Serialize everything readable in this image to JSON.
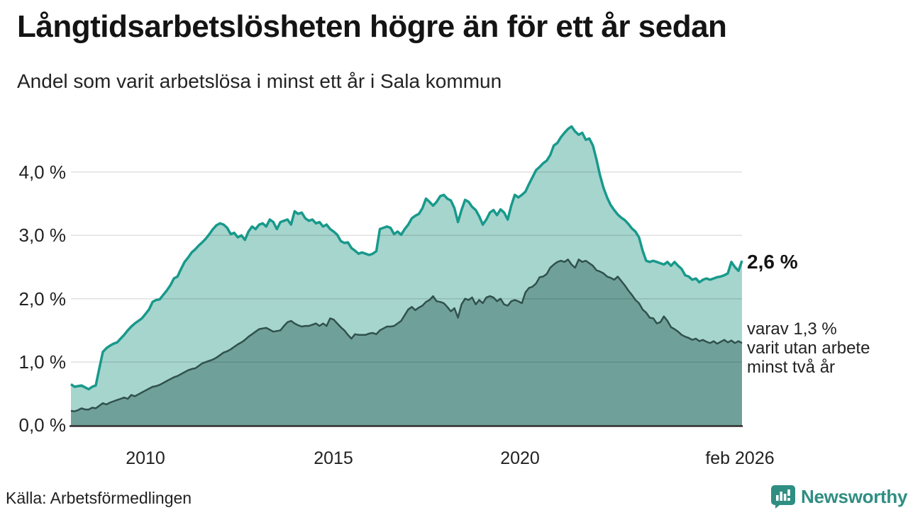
{
  "title": "Långtidsarbetslösheten högre än för ett år sedan",
  "subtitle": "Andel som varit arbetslösa i minst ett år i Sala kommun",
  "source": "Källa: Arbetsförmedlingen",
  "brand": "Newsworthy",
  "colors": {
    "series1_line": "#18998b",
    "series1_fill": "#a6d5ce",
    "series2_line": "#30514d",
    "series2_fill": "#70a09a",
    "baseline": "#2e2e2e",
    "gridline": "rgba(0,0,0,0.12)",
    "brand_teal": "#2f8e82"
  },
  "chart_data": {
    "type": "area",
    "title": "Långtidsarbetslösheten högre än för ett år sedan",
    "subtitle": "Andel som varit arbetslösa i minst ett år i Sala kommun",
    "xlabel": "",
    "ylabel": "",
    "ylim": [
      0,
      4.9
    ],
    "x_start": "jan 2008",
    "x_end": "feb 2026",
    "grid": "horizontal",
    "y_ticks": [
      {
        "label": "4,0 %",
        "value": 4.0
      },
      {
        "label": "3,0 %",
        "value": 3.0
      },
      {
        "label": "2,0 %",
        "value": 2.0
      },
      {
        "label": "1,0 %",
        "value": 1.0
      },
      {
        "label": "0,0 %",
        "value": 0.0
      }
    ],
    "x_ticks": [
      {
        "label": "2010"
      },
      {
        "label": "2015"
      },
      {
        "label": "2020"
      },
      {
        "label": "feb 2026"
      }
    ],
    "annotation": {
      "primary": "2,6 %",
      "secondary_lines": [
        "varav 1,3 %",
        "varit utan arbete",
        "minst två år"
      ]
    },
    "series": [
      {
        "name": "Andel som varit arbetslösa i minst ett år",
        "end_label": "2,6 %",
        "end_value": 2.6,
        "values": [
          0.65,
          0.61,
          0.62,
          0.63,
          0.6,
          0.57,
          0.61,
          0.63,
          0.9,
          1.16,
          1.22,
          1.26,
          1.29,
          1.31,
          1.37,
          1.43,
          1.5,
          1.56,
          1.61,
          1.65,
          1.69,
          1.76,
          1.83,
          1.95,
          1.98,
          1.99,
          2.06,
          2.13,
          2.21,
          2.32,
          2.35,
          2.47,
          2.58,
          2.65,
          2.73,
          2.78,
          2.84,
          2.89,
          2.95,
          3.02,
          3.1,
          3.16,
          3.19,
          3.17,
          3.12,
          3.02,
          3.04,
          2.97,
          3.0,
          2.93,
          3.06,
          3.14,
          3.1,
          3.17,
          3.19,
          3.14,
          3.25,
          3.21,
          3.1,
          3.21,
          3.23,
          3.25,
          3.17,
          3.38,
          3.34,
          3.36,
          3.27,
          3.23,
          3.25,
          3.19,
          3.21,
          3.14,
          3.17,
          3.1,
          3.06,
          3.01,
          2.91,
          2.88,
          2.89,
          2.8,
          2.76,
          2.71,
          2.73,
          2.71,
          2.69,
          2.71,
          2.75,
          3.1,
          3.12,
          3.14,
          3.12,
          3.02,
          3.06,
          3.01,
          3.1,
          3.17,
          3.27,
          3.31,
          3.34,
          3.43,
          3.58,
          3.53,
          3.47,
          3.53,
          3.62,
          3.64,
          3.58,
          3.55,
          3.43,
          3.21,
          3.4,
          3.56,
          3.53,
          3.45,
          3.4,
          3.3,
          3.17,
          3.25,
          3.36,
          3.4,
          3.32,
          3.41,
          3.36,
          3.25,
          3.47,
          3.64,
          3.6,
          3.64,
          3.69,
          3.81,
          3.92,
          4.03,
          4.08,
          4.14,
          4.18,
          4.27,
          4.42,
          4.46,
          4.55,
          4.62,
          4.68,
          4.72,
          4.64,
          4.59,
          4.62,
          4.51,
          4.53,
          4.42,
          4.2,
          3.95,
          3.75,
          3.6,
          3.48,
          3.4,
          3.33,
          3.28,
          3.24,
          3.18,
          3.11,
          3.06,
          2.97,
          2.76,
          2.6,
          2.58,
          2.6,
          2.58,
          2.56,
          2.54,
          2.58,
          2.52,
          2.58,
          2.52,
          2.47,
          2.37,
          2.35,
          2.3,
          2.32,
          2.26,
          2.3,
          2.32,
          2.3,
          2.32,
          2.34,
          2.35,
          2.37,
          2.4,
          2.58,
          2.5,
          2.44,
          2.6
        ]
      },
      {
        "name": "varav varit utan arbete minst två år",
        "end_label": "varav 1,3 % varit utan arbete minst två år",
        "end_value": 1.3,
        "values": [
          0.23,
          0.22,
          0.24,
          0.27,
          0.25,
          0.25,
          0.28,
          0.27,
          0.31,
          0.35,
          0.33,
          0.36,
          0.38,
          0.4,
          0.42,
          0.44,
          0.42,
          0.48,
          0.46,
          0.49,
          0.52,
          0.55,
          0.58,
          0.61,
          0.62,
          0.64,
          0.67,
          0.7,
          0.73,
          0.76,
          0.78,
          0.81,
          0.84,
          0.87,
          0.89,
          0.9,
          0.94,
          0.98,
          1.0,
          1.02,
          1.04,
          1.07,
          1.11,
          1.15,
          1.17,
          1.2,
          1.24,
          1.28,
          1.31,
          1.35,
          1.4,
          1.44,
          1.48,
          1.52,
          1.53,
          1.54,
          1.51,
          1.48,
          1.49,
          1.5,
          1.57,
          1.63,
          1.65,
          1.61,
          1.58,
          1.56,
          1.57,
          1.57,
          1.59,
          1.61,
          1.57,
          1.61,
          1.57,
          1.69,
          1.67,
          1.61,
          1.55,
          1.5,
          1.43,
          1.37,
          1.44,
          1.43,
          1.43,
          1.43,
          1.45,
          1.46,
          1.44,
          1.5,
          1.53,
          1.56,
          1.56,
          1.57,
          1.61,
          1.65,
          1.74,
          1.83,
          1.87,
          1.82,
          1.86,
          1.89,
          1.95,
          1.98,
          2.04,
          1.96,
          1.95,
          1.93,
          1.87,
          1.8,
          1.85,
          1.7,
          1.91,
          2.0,
          1.98,
          2.02,
          1.91,
          1.98,
          1.93,
          2.02,
          2.04,
          2.02,
          1.96,
          2.0,
          1.91,
          1.89,
          1.96,
          1.98,
          1.96,
          1.93,
          2.1,
          2.17,
          2.19,
          2.24,
          2.34,
          2.35,
          2.39,
          2.49,
          2.54,
          2.58,
          2.6,
          2.58,
          2.62,
          2.54,
          2.49,
          2.62,
          2.58,
          2.6,
          2.56,
          2.52,
          2.45,
          2.43,
          2.4,
          2.35,
          2.33,
          2.3,
          2.35,
          2.28,
          2.21,
          2.13,
          2.06,
          1.98,
          1.93,
          1.83,
          1.78,
          1.7,
          1.69,
          1.61,
          1.63,
          1.72,
          1.65,
          1.55,
          1.52,
          1.48,
          1.43,
          1.4,
          1.38,
          1.35,
          1.37,
          1.33,
          1.35,
          1.32,
          1.3,
          1.33,
          1.29,
          1.32,
          1.35,
          1.31,
          1.34,
          1.3,
          1.33,
          1.3
        ]
      }
    ]
  }
}
